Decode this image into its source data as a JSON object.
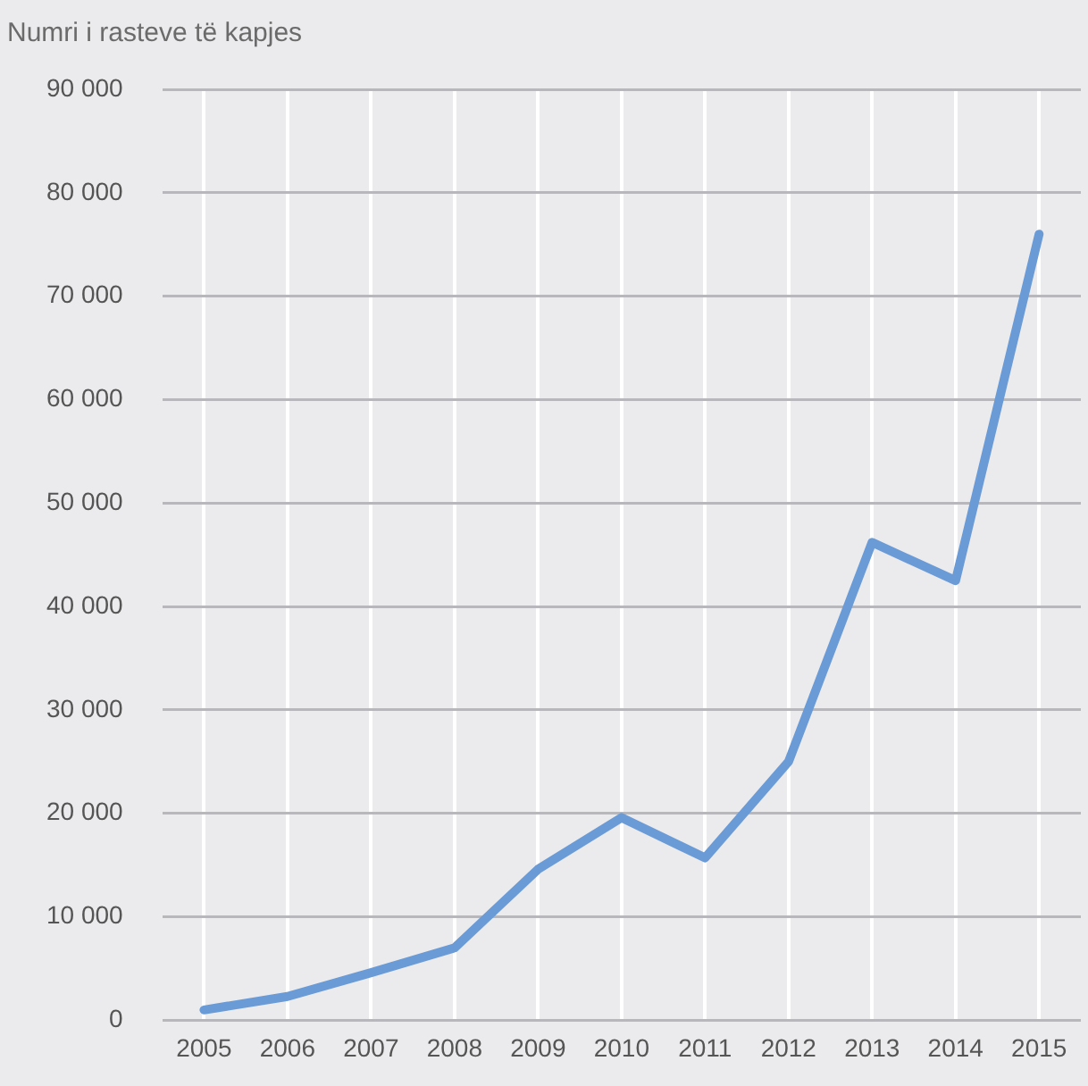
{
  "chart_data": {
    "type": "line",
    "title": "Numri i rasteve të kapjes",
    "categories": [
      "2005",
      "2006",
      "2007",
      "2008",
      "2009",
      "2010",
      "2011",
      "2012",
      "2013",
      "2014",
      "2015"
    ],
    "series": [
      {
        "color": "#6a9bd6",
        "values": [
          1000,
          2300,
          4600,
          7000,
          14600,
          19600,
          15700,
          25000,
          46200,
          42500,
          76000
        ]
      }
    ],
    "ylim": [
      0,
      90000
    ],
    "yticks": [
      {
        "value": 0,
        "label": "0"
      },
      {
        "value": 10000,
        "label": "10 000"
      },
      {
        "value": 20000,
        "label": "20 000"
      },
      {
        "value": 30000,
        "label": "30 000"
      },
      {
        "value": 40000,
        "label": "40 000"
      },
      {
        "value": 50000,
        "label": "50 000"
      },
      {
        "value": 60000,
        "label": "60 000"
      },
      {
        "value": 70000,
        "label": "70 000"
      },
      {
        "value": 80000,
        "label": "80 000"
      },
      {
        "value": 90000,
        "label": "90 000"
      }
    ],
    "grid": true,
    "legend": false,
    "marker": "none",
    "line_style": "solid"
  }
}
